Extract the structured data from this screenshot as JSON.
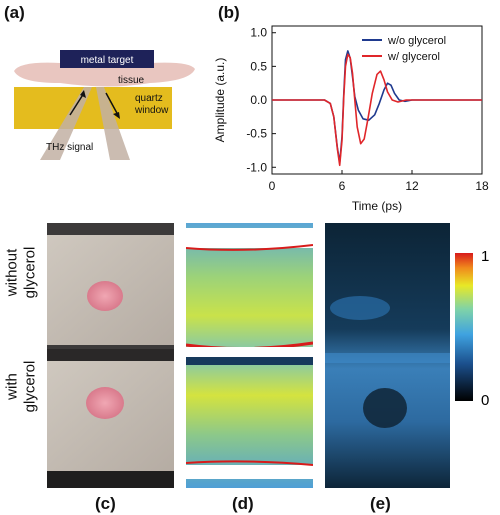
{
  "panels": {
    "a": "(a)",
    "b": "(b)",
    "c": "(c)",
    "d": "(d)",
    "e": "(e)"
  },
  "schematic": {
    "metal_target": "metal target",
    "tissue": "tissue",
    "quartz": "quartz",
    "window": "window",
    "thz_signal": "THz signal"
  },
  "row_labels": {
    "without_1": "without",
    "without_2": "glycerol",
    "with_1": "with",
    "with_2": "glycerol"
  },
  "colorbar": {
    "max_label": "1",
    "min_label": "0"
  },
  "chart_data": {
    "type": "line",
    "xlabel": "Time (ps)",
    "ylabel": "Amplitude (a.u.)",
    "xlim": [
      0,
      18
    ],
    "ylim": [
      -1.1,
      1.1
    ],
    "xticks": [
      0,
      6,
      12,
      18
    ],
    "yticks": [
      1.0,
      0.5,
      0.0,
      -0.5,
      -1.0
    ],
    "xtick_labels": [
      "0",
      "6",
      "12",
      "18"
    ],
    "ytick_labels": [
      "1.0",
      "0.5",
      "0.0",
      "-0.5",
      "-1.0"
    ],
    "legend_position": "top-right",
    "series": [
      {
        "name": "w/o glycerol",
        "color": "#1f3a8f",
        "x": [
          0,
          4.5,
          5.0,
          5.3,
          5.6,
          5.8,
          6.0,
          6.15,
          6.3,
          6.5,
          6.7,
          6.9,
          7.1,
          7.4,
          7.8,
          8.3,
          8.8,
          9.2,
          9.6,
          9.9,
          10.2,
          10.5,
          10.9,
          11.4,
          12.0,
          13.0,
          18.0
        ],
        "y": [
          0,
          0.0,
          -0.05,
          -0.25,
          -0.7,
          -0.93,
          -0.55,
          0.1,
          0.6,
          0.73,
          0.62,
          0.35,
          0.05,
          -0.15,
          -0.28,
          -0.3,
          -0.22,
          -0.05,
          0.15,
          0.25,
          0.22,
          0.1,
          0.0,
          -0.02,
          0.0,
          0.0,
          0.0
        ]
      },
      {
        "name": "w/ glycerol",
        "color": "#e0262a",
        "x": [
          0,
          4.5,
          5.0,
          5.3,
          5.6,
          5.8,
          6.0,
          6.15,
          6.3,
          6.5,
          6.7,
          6.9,
          7.1,
          7.3,
          7.6,
          7.9,
          8.2,
          8.6,
          9.0,
          9.3,
          9.6,
          9.9,
          10.3,
          10.8,
          11.5,
          12.5,
          18.0
        ],
        "y": [
          0,
          0.0,
          -0.05,
          -0.25,
          -0.72,
          -0.97,
          -0.6,
          0.05,
          0.5,
          0.68,
          0.63,
          0.4,
          0.0,
          -0.4,
          -0.65,
          -0.58,
          -0.3,
          0.1,
          0.38,
          0.43,
          0.3,
          0.12,
          0.0,
          -0.03,
          0.0,
          0.0,
          0.0
        ]
      }
    ]
  }
}
